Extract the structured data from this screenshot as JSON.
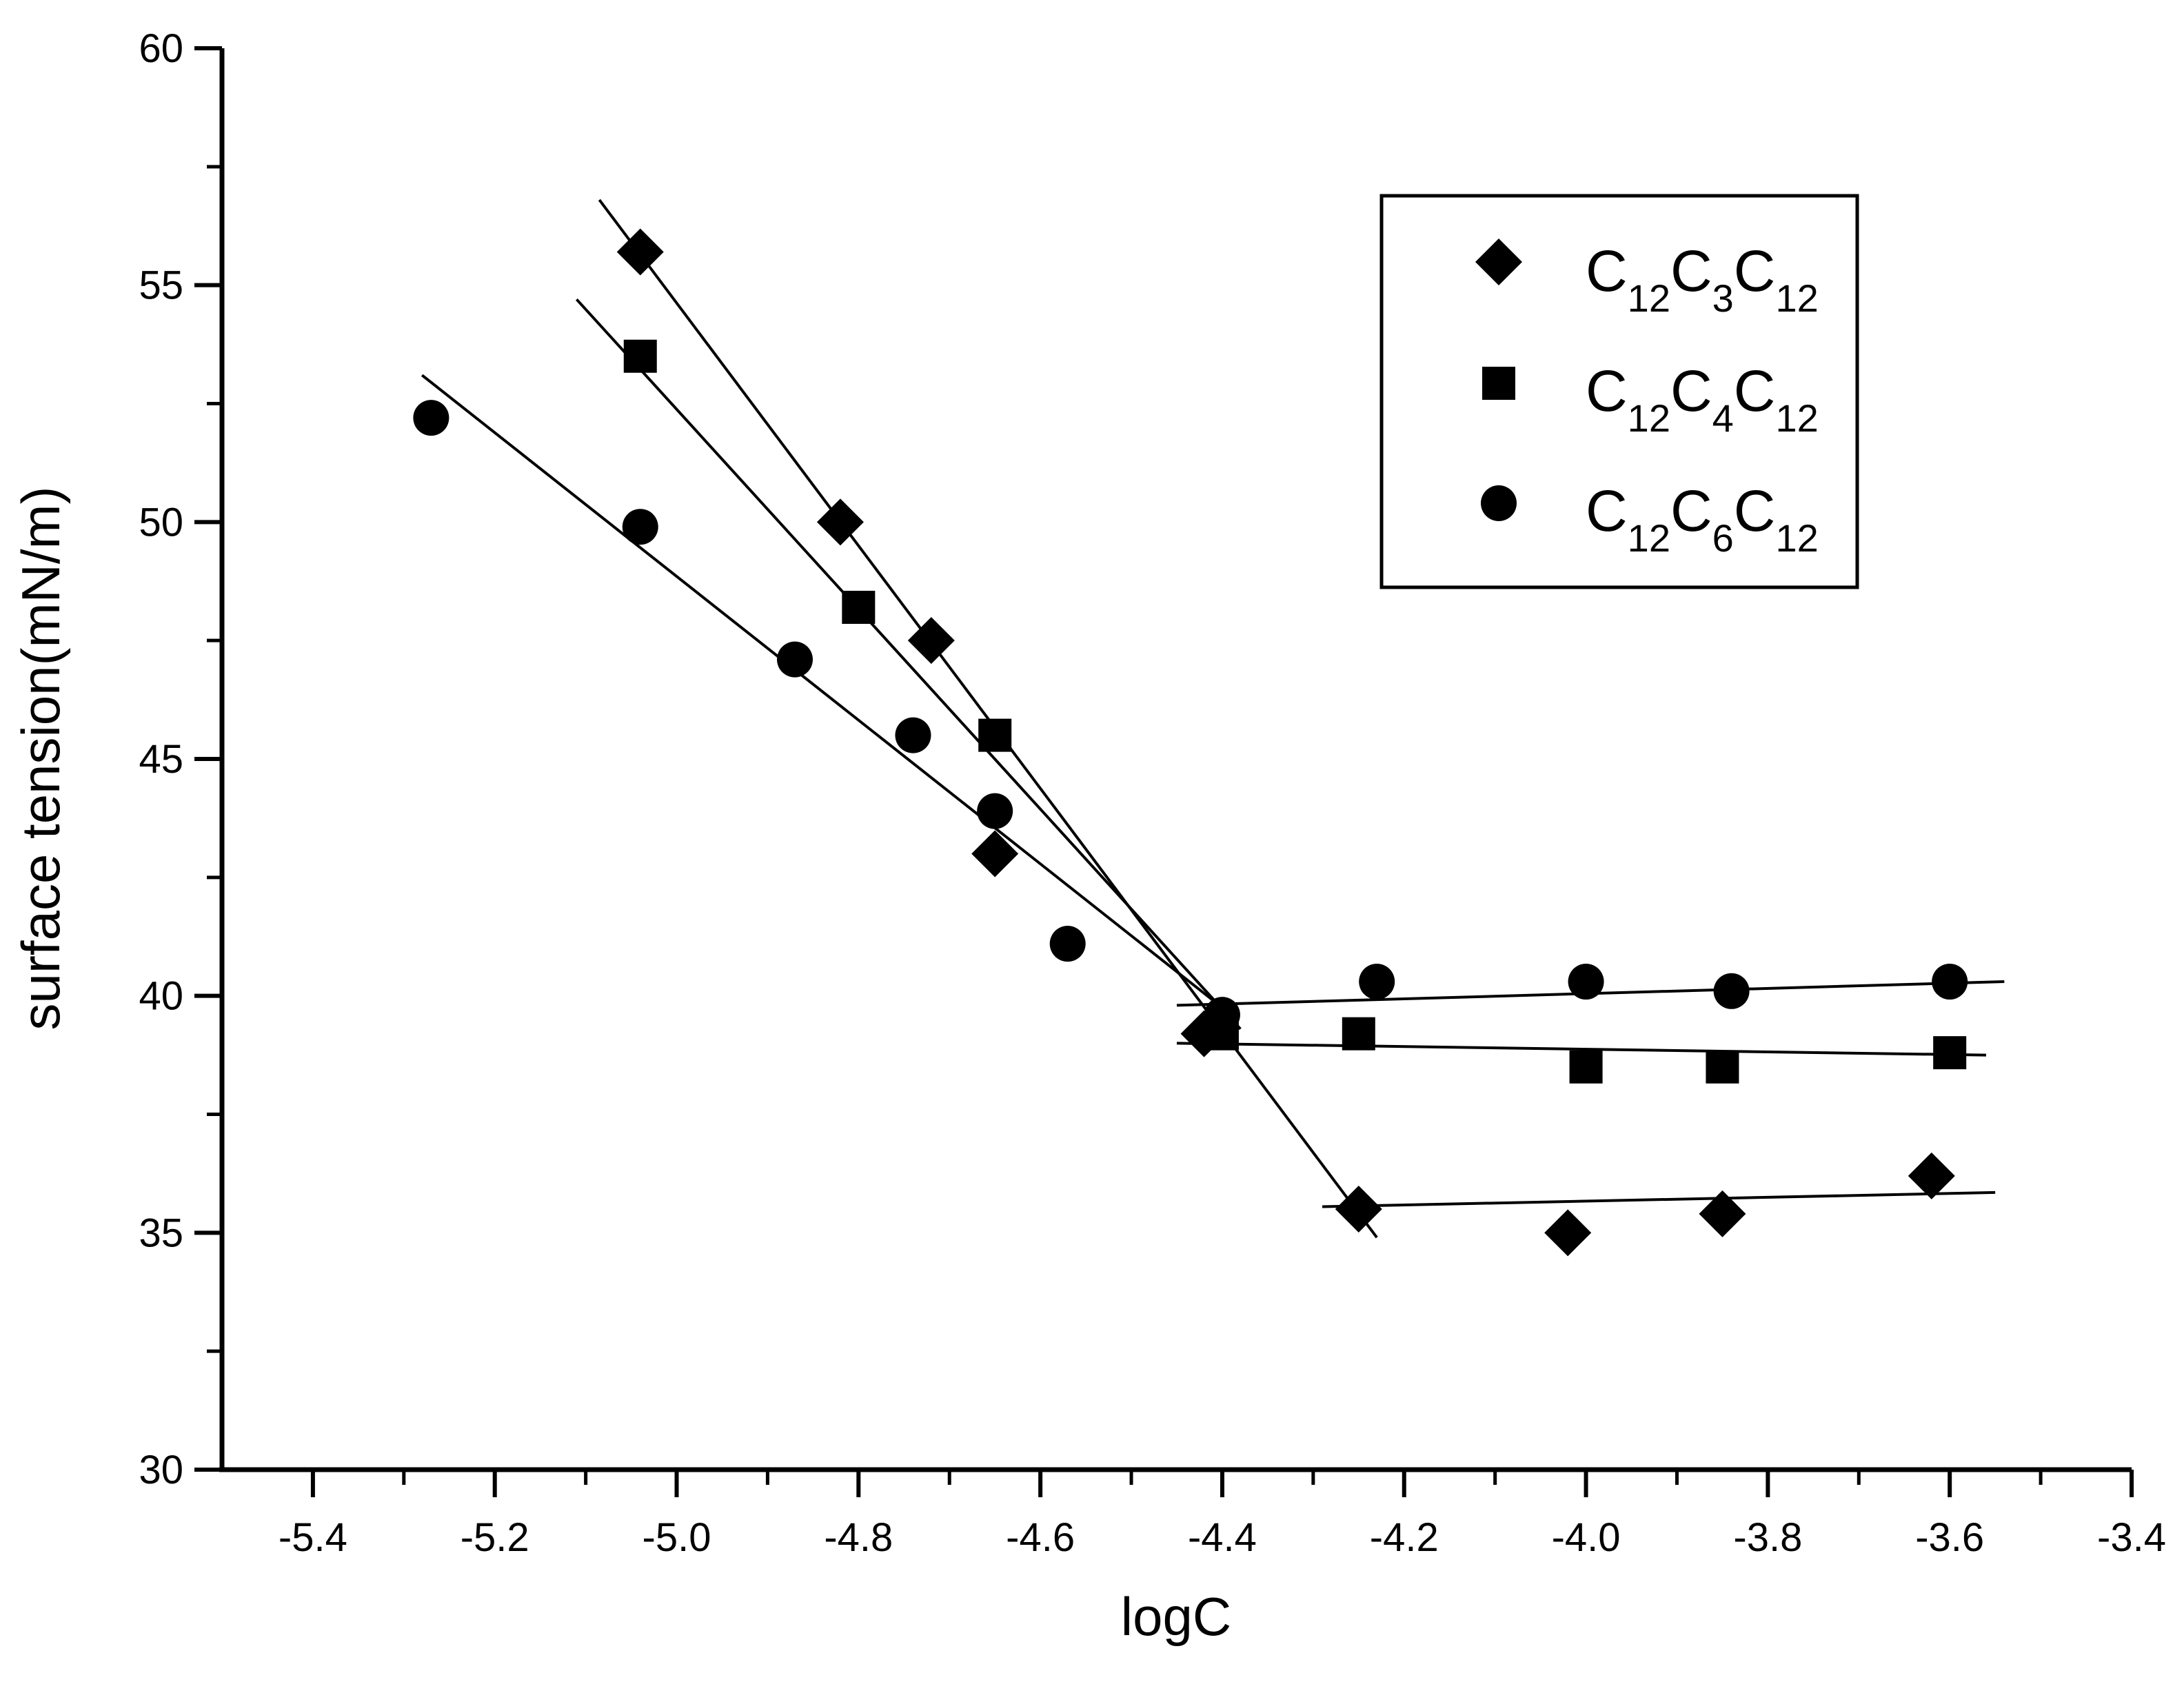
{
  "chart_data": {
    "type": "scatter",
    "title": "",
    "xlabel": "logC",
    "ylabel": "surface tension(mN/m)",
    "xlim": [
      -5.5,
      -3.4
    ],
    "ylim": [
      30,
      60
    ],
    "xticks": [
      -5.4,
      -5.2,
      -5.0,
      -4.8,
      -4.6,
      -4.4,
      -4.2,
      -4.0,
      -3.8,
      -3.6,
      -3.4
    ],
    "xtick_labels": [
      "-5.4",
      "-5.2",
      "-5.0",
      "-4.8",
      "-4.6",
      "-4.4",
      "-4.2",
      "-4.0",
      "-3.8",
      "-3.6",
      "-3.4"
    ],
    "yticks": [
      30,
      35,
      40,
      45,
      50,
      55,
      60
    ],
    "ytick_labels": [
      "30",
      "35",
      "40",
      "45",
      "50",
      "55",
      "60"
    ],
    "grid": false,
    "legend_position": "top-right",
    "series": [
      {
        "name": "C12C3C12",
        "legend": {
          "a": "C",
          "b": "12",
          "c": "C",
          "d": "3",
          "e": "C",
          "f": "12"
        },
        "marker": "diamond",
        "color": "#000000",
        "x": [
          -5.04,
          -4.82,
          -4.72,
          -4.65,
          -4.42,
          -4.25,
          -4.02,
          -3.85,
          -3.62
        ],
        "y": [
          55.7,
          50.0,
          47.5,
          43.0,
          39.2,
          35.5,
          35.0,
          35.4,
          36.2
        ],
        "fit_lines": [
          {
            "x": [
              -5.085,
              -4.23
            ],
            "y": [
              56.8,
              34.9
            ]
          },
          {
            "x": [
              -4.29,
              -3.55
            ],
            "y": [
              35.55,
              35.85
            ]
          }
        ]
      },
      {
        "name": "C12C4C12",
        "legend": {
          "a": "C",
          "b": "12",
          "c": "C",
          "d": "4",
          "e": "C",
          "f": "12"
        },
        "marker": "square",
        "color": "#000000",
        "x": [
          -5.04,
          -4.8,
          -4.65,
          -4.4,
          -4.25,
          -4.0,
          -3.85,
          -3.6
        ],
        "y": [
          53.5,
          48.2,
          45.5,
          39.2,
          39.2,
          38.5,
          38.5,
          38.8
        ],
        "fit_lines": [
          {
            "x": [
              -5.11,
              -4.38
            ],
            "y": [
              54.7,
              39.3
            ]
          },
          {
            "x": [
              -4.45,
              -3.56
            ],
            "y": [
              39.0,
              38.75
            ]
          }
        ]
      },
      {
        "name": "C12C6C12",
        "legend": {
          "a": "C",
          "b": "12",
          "c": "C",
          "d": "6",
          "e": "C",
          "f": "12"
        },
        "marker": "circle",
        "color": "#000000",
        "x": [
          -5.27,
          -5.04,
          -4.87,
          -4.74,
          -4.65,
          -4.57,
          -4.4,
          -4.23,
          -4.0,
          -3.84,
          -3.6
        ],
        "y": [
          52.2,
          49.9,
          47.1,
          45.5,
          43.9,
          41.1,
          39.6,
          40.3,
          40.3,
          40.1,
          40.3
        ],
        "fit_lines": [
          {
            "x": [
              -5.28,
              -4.39
            ],
            "y": [
              53.1,
              39.6
            ]
          },
          {
            "x": [
              -4.45,
              -3.54
            ],
            "y": [
              39.8,
              40.3
            ]
          }
        ]
      }
    ]
  }
}
